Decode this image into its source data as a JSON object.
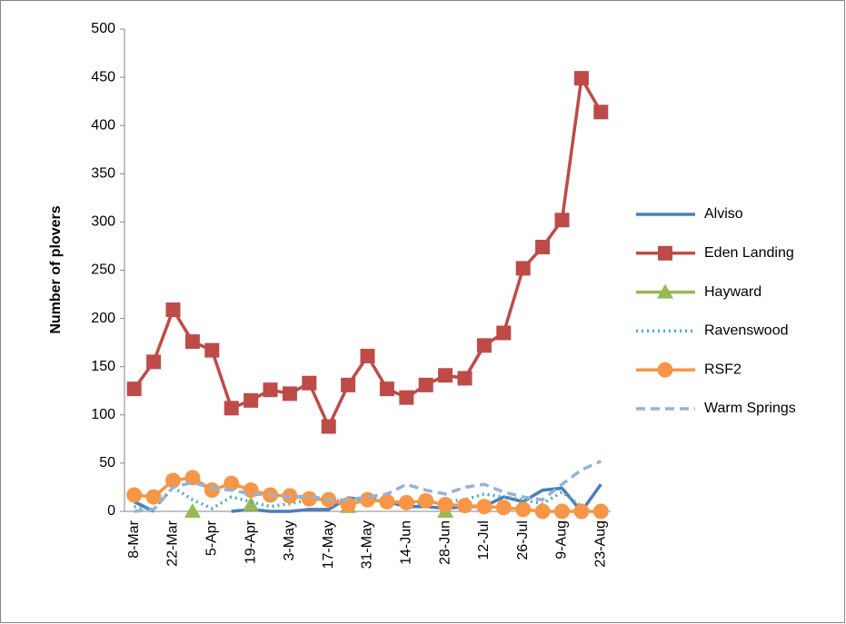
{
  "chart_data": {
    "type": "line",
    "y_label": "Number of plovers",
    "categories": [
      "8-Mar",
      null,
      "22-Mar",
      null,
      "5-Apr",
      null,
      "19-Apr",
      null,
      "3-May",
      null,
      "17-May",
      null,
      "31-May",
      null,
      "14-Jun",
      null,
      "28-Jun",
      null,
      "12-Jul",
      null,
      "26-Jul",
      null,
      "9-Aug",
      null,
      "23-Aug"
    ],
    "ylim": [
      0,
      500
    ],
    "yticks": [
      0,
      50,
      100,
      150,
      200,
      250,
      300,
      350,
      400,
      450,
      500
    ],
    "legend": "right",
    "series": [
      {
        "name": "Alviso",
        "color": "#4a7ebb",
        "style": "solid",
        "marker": "none",
        "values": [
          10,
          0,
          null,
          null,
          null,
          0,
          2,
          0,
          0,
          2,
          2,
          14,
          12,
          10,
          5,
          5,
          3,
          5,
          5,
          15,
          10,
          22,
          24,
          0,
          28
        ]
      },
      {
        "name": "Eden Landing",
        "color": "#be4b48",
        "style": "solid",
        "marker": "square",
        "values": [
          127,
          155,
          209,
          176,
          167,
          107,
          115,
          126,
          122,
          133,
          88,
          131,
          161,
          127,
          118,
          131,
          141,
          138,
          172,
          185,
          252,
          274,
          302,
          449,
          414
        ]
      },
      {
        "name": "Hayward",
        "color": "#98b954",
        "style": "solid",
        "marker": "triangle",
        "values": [
          null,
          null,
          null,
          0,
          null,
          null,
          7,
          null,
          null,
          null,
          null,
          5,
          null,
          null,
          null,
          null,
          0,
          null,
          null,
          null,
          null,
          null,
          null,
          null,
          null
        ]
      },
      {
        "name": "Ravenswood",
        "color": "#4bacc6",
        "style": "dotted",
        "marker": "none",
        "values": [
          5,
          2,
          25,
          12,
          3,
          15,
          10,
          5,
          8,
          12,
          12,
          10,
          14,
          12,
          8,
          8,
          10,
          12,
          18,
          15,
          12,
          8,
          20,
          5,
          null
        ]
      },
      {
        "name": "RSF2",
        "color": "#f79646",
        "style": "solid",
        "marker": "circle",
        "values": [
          17,
          15,
          32,
          35,
          22,
          29,
          22,
          17,
          16,
          13,
          12,
          7,
          12,
          10,
          9,
          11,
          7,
          6,
          5,
          4,
          2,
          0,
          0,
          0,
          0
        ]
      },
      {
        "name": "Warm Springs",
        "color": "#95b3d7",
        "style": "dashed",
        "marker": "none",
        "values": [
          0,
          2,
          25,
          30,
          24,
          22,
          18,
          17,
          15,
          16,
          12,
          12,
          15,
          18,
          28,
          22,
          18,
          25,
          28,
          20,
          15,
          12,
          28,
          43,
          52
        ]
      }
    ]
  }
}
